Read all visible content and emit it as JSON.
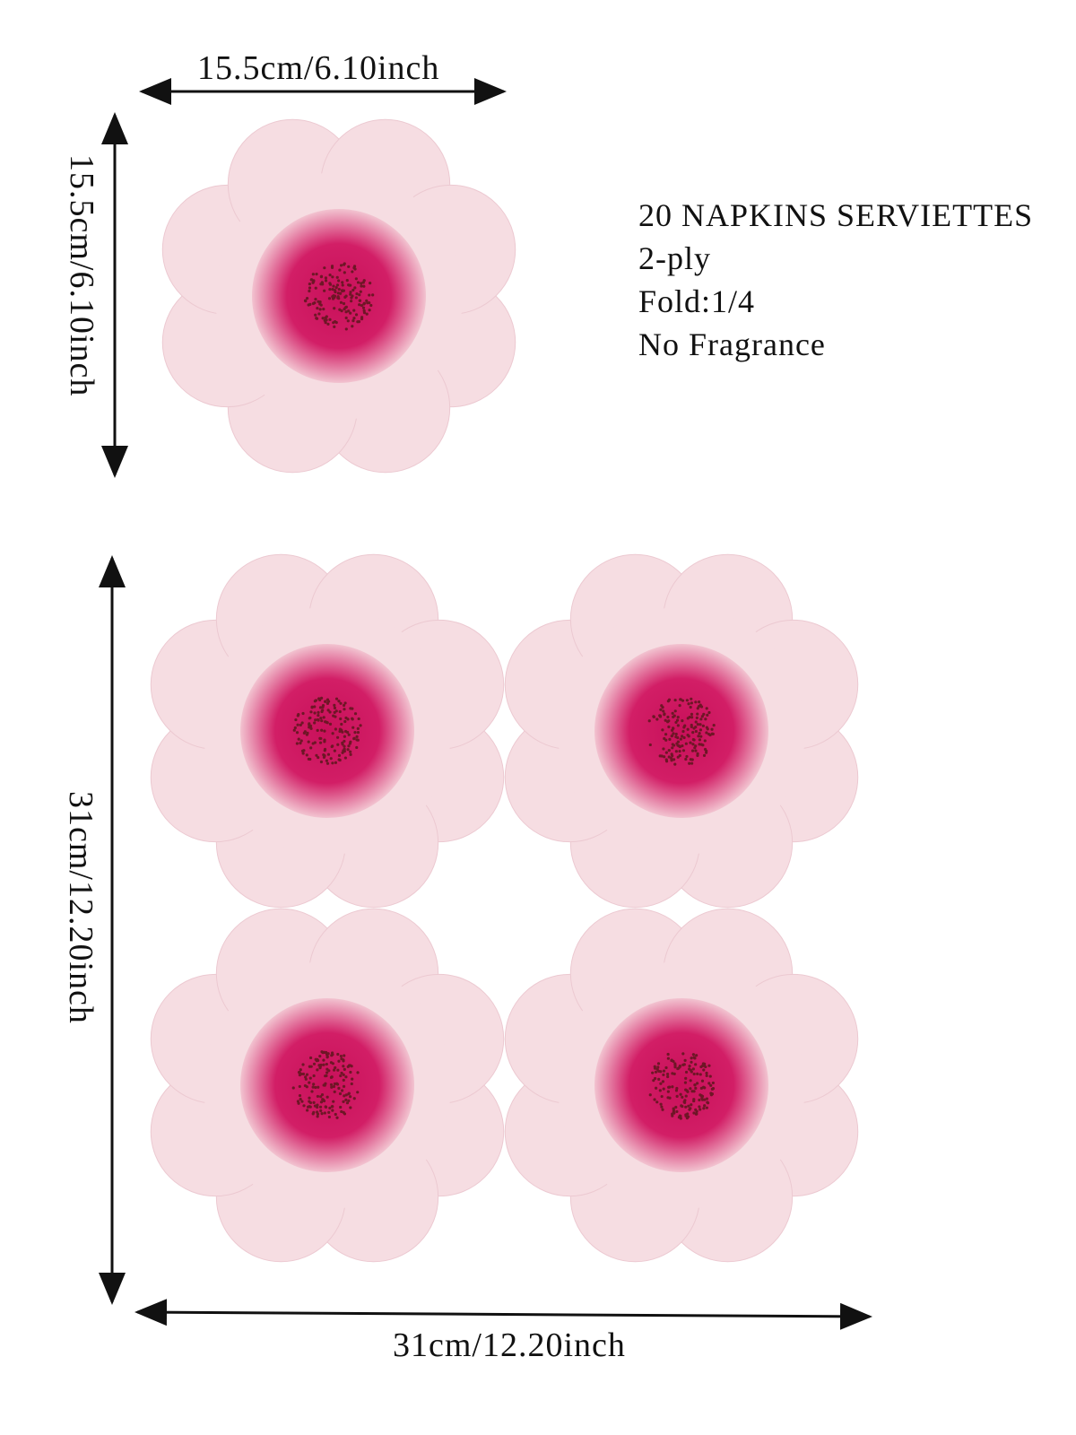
{
  "dimensions": {
    "single_width": "15.5cm/6.10inch",
    "single_height": "15.5cm/6.10inch",
    "unfolded_height": "31cm/12.20inch",
    "unfolded_width": "31cm/12.20inch"
  },
  "info": {
    "lines": [
      "20 NAPKINS SERVIETTES",
      "2-ply",
      "Fold:1/4",
      "No Fragrance"
    ]
  },
  "colors": {
    "petal": "#f6dde2",
    "center_inner": "#c8105a",
    "center_outer": "#f2c3d0",
    "seeds": "#6e1626"
  }
}
